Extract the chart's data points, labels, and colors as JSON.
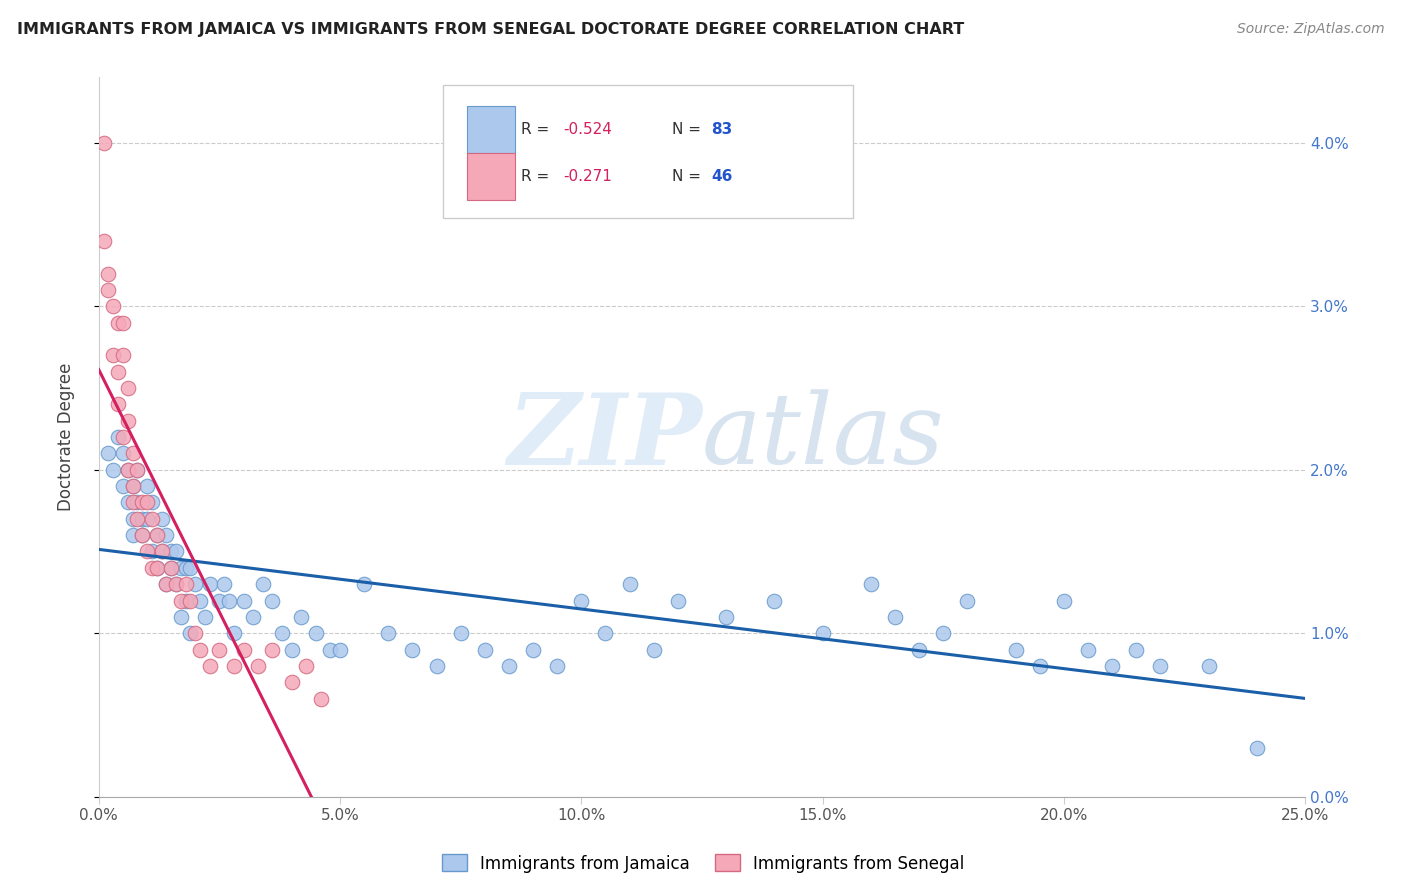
{
  "title": "IMMIGRANTS FROM JAMAICA VS IMMIGRANTS FROM SENEGAL DOCTORATE DEGREE CORRELATION CHART",
  "source": "Source: ZipAtlas.com",
  "ylabel": "Doctorate Degree",
  "xlim": [
    0.0,
    0.25
  ],
  "ylim": [
    0.0,
    0.044
  ],
  "xticks": [
    0.0,
    0.05,
    0.1,
    0.15,
    0.2,
    0.25
  ],
  "xticklabels": [
    "0.0%",
    "5.0%",
    "10.0%",
    "15.0%",
    "20.0%",
    "25.0%"
  ],
  "yticks": [
    0.0,
    0.01,
    0.02,
    0.03,
    0.04
  ],
  "yticklabels_right": [
    "0.0%",
    "1.0%",
    "2.0%",
    "3.0%",
    "4.0%"
  ],
  "jamaica_color": "#adc8ed",
  "senegal_color": "#f5a8b8",
  "jamaica_edge": "#6699cc",
  "senegal_edge": "#d46880",
  "line_jamaica_color": "#1a5fa8",
  "line_senegal_color": "#d42060",
  "r_color": "#d42060",
  "n_color": "#2255cc",
  "watermark_zip": "ZIP",
  "watermark_atlas": "atlas",
  "jamaica_x": [
    0.002,
    0.003,
    0.004,
    0.005,
    0.005,
    0.006,
    0.006,
    0.007,
    0.007,
    0.007,
    0.008,
    0.008,
    0.009,
    0.009,
    0.01,
    0.01,
    0.011,
    0.011,
    0.012,
    0.012,
    0.013,
    0.013,
    0.014,
    0.014,
    0.015,
    0.015,
    0.016,
    0.016,
    0.017,
    0.017,
    0.018,
    0.018,
    0.019,
    0.019,
    0.02,
    0.021,
    0.022,
    0.023,
    0.025,
    0.026,
    0.027,
    0.028,
    0.03,
    0.032,
    0.034,
    0.036,
    0.038,
    0.04,
    0.042,
    0.045,
    0.048,
    0.05,
    0.055,
    0.06,
    0.065,
    0.07,
    0.075,
    0.08,
    0.085,
    0.09,
    0.095,
    0.1,
    0.105,
    0.11,
    0.115,
    0.12,
    0.13,
    0.14,
    0.15,
    0.16,
    0.165,
    0.17,
    0.175,
    0.18,
    0.19,
    0.195,
    0.2,
    0.205,
    0.21,
    0.215,
    0.22,
    0.23,
    0.24
  ],
  "jamaica_y": [
    0.021,
    0.02,
    0.022,
    0.019,
    0.021,
    0.02,
    0.018,
    0.019,
    0.017,
    0.016,
    0.018,
    0.02,
    0.017,
    0.016,
    0.019,
    0.017,
    0.018,
    0.015,
    0.016,
    0.014,
    0.017,
    0.015,
    0.016,
    0.013,
    0.015,
    0.014,
    0.015,
    0.013,
    0.014,
    0.011,
    0.014,
    0.012,
    0.014,
    0.01,
    0.013,
    0.012,
    0.011,
    0.013,
    0.012,
    0.013,
    0.012,
    0.01,
    0.012,
    0.011,
    0.013,
    0.012,
    0.01,
    0.009,
    0.011,
    0.01,
    0.009,
    0.009,
    0.013,
    0.01,
    0.009,
    0.008,
    0.01,
    0.009,
    0.008,
    0.009,
    0.008,
    0.012,
    0.01,
    0.013,
    0.009,
    0.012,
    0.011,
    0.012,
    0.01,
    0.013,
    0.011,
    0.009,
    0.01,
    0.012,
    0.009,
    0.008,
    0.012,
    0.009,
    0.008,
    0.009,
    0.008,
    0.008,
    0.003
  ],
  "senegal_x": [
    0.001,
    0.001,
    0.002,
    0.002,
    0.003,
    0.003,
    0.004,
    0.004,
    0.004,
    0.005,
    0.005,
    0.005,
    0.006,
    0.006,
    0.006,
    0.007,
    0.007,
    0.007,
    0.008,
    0.008,
    0.009,
    0.009,
    0.01,
    0.01,
    0.011,
    0.011,
    0.012,
    0.012,
    0.013,
    0.014,
    0.015,
    0.016,
    0.017,
    0.018,
    0.019,
    0.02,
    0.021,
    0.023,
    0.025,
    0.028,
    0.03,
    0.033,
    0.036,
    0.04,
    0.043,
    0.046
  ],
  "senegal_y": [
    0.04,
    0.034,
    0.032,
    0.031,
    0.03,
    0.027,
    0.029,
    0.026,
    0.024,
    0.029,
    0.027,
    0.022,
    0.025,
    0.023,
    0.02,
    0.021,
    0.019,
    0.018,
    0.02,
    0.017,
    0.018,
    0.016,
    0.018,
    0.015,
    0.017,
    0.014,
    0.016,
    0.014,
    0.015,
    0.013,
    0.014,
    0.013,
    0.012,
    0.013,
    0.012,
    0.01,
    0.009,
    0.008,
    0.009,
    0.008,
    0.009,
    0.008,
    0.009,
    0.007,
    0.008,
    0.006
  ]
}
